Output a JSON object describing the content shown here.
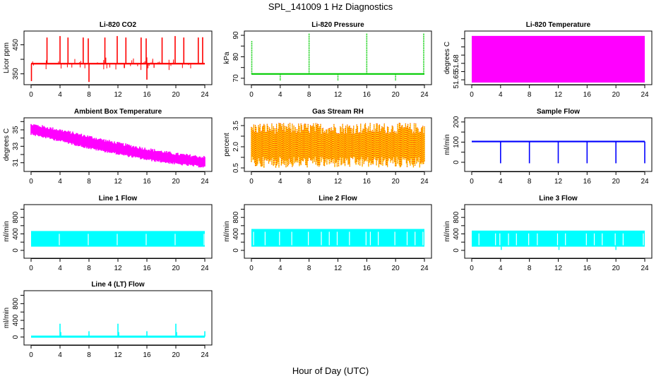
{
  "title": "SPL_141009  1 Hz Diagnostics",
  "shared_xlabel": "Hour of Day (UTC)",
  "chart_data": [
    {
      "type": "line",
      "title": "Li-820 CO2",
      "xlabel": "",
      "ylabel": "Licor ppm",
      "color": "#ff0000",
      "xlim": [
        0,
        24
      ],
      "ylim": [
        320,
        490
      ],
      "xticks": [
        0,
        4,
        8,
        12,
        16,
        20,
        24
      ],
      "yticks": [
        350,
        400,
        450
      ],
      "ytick_labels": [
        "350",
        "",
        "450"
      ],
      "baseline": 385,
      "pattern": "spiky",
      "spikes": [
        {
          "x": 0.05,
          "y": 325
        },
        {
          "x": 2.2,
          "y": 475
        },
        {
          "x": 4.0,
          "y": 480
        },
        {
          "x": 5.1,
          "y": 475
        },
        {
          "x": 7.2,
          "y": 475
        },
        {
          "x": 7.9,
          "y": 472
        },
        {
          "x": 8.0,
          "y": 322
        },
        {
          "x": 10.2,
          "y": 475
        },
        {
          "x": 11.9,
          "y": 480
        },
        {
          "x": 13.1,
          "y": 475
        },
        {
          "x": 15.2,
          "y": 475
        },
        {
          "x": 15.9,
          "y": 472
        },
        {
          "x": 16.0,
          "y": 330
        },
        {
          "x": 18.1,
          "y": 475
        },
        {
          "x": 19.9,
          "y": 480
        },
        {
          "x": 21.1,
          "y": 475
        },
        {
          "x": 23.1,
          "y": 475
        },
        {
          "x": 23.7,
          "y": 476
        }
      ]
    },
    {
      "type": "line",
      "title": "Li-820 Pressure",
      "xlabel": "",
      "ylabel": "kPa",
      "color": "#00cc00",
      "xlim": [
        0,
        24
      ],
      "ylim": [
        68,
        91
      ],
      "xticks": [
        0,
        4,
        8,
        12,
        16,
        20,
        24
      ],
      "yticks": [
        70,
        75,
        80,
        85,
        90
      ],
      "ytick_labels": [
        "70",
        "",
        "80",
        "",
        "90"
      ],
      "baseline": 72,
      "pattern": "spiky",
      "spikes": [
        {
          "x": 0.05,
          "y": 87.5
        },
        {
          "x": 4.0,
          "y": 69
        },
        {
          "x": 8.0,
          "y": 91
        },
        {
          "x": 12.0,
          "y": 69
        },
        {
          "x": 16.0,
          "y": 91
        },
        {
          "x": 20.0,
          "y": 69
        },
        {
          "x": 23.9,
          "y": 91
        }
      ]
    },
    {
      "type": "area",
      "title": "Li-820 Temperature",
      "xlabel": "",
      "ylabel": "degrees C",
      "color": "#ff00ff",
      "xlim": [
        0,
        24
      ],
      "ylim": [
        51.645,
        51.735
      ],
      "xticks": [
        0,
        4,
        8,
        12,
        16,
        20,
        24
      ],
      "yticks": [
        51.65,
        51.665,
        51.68,
        51.695,
        51.71,
        51.725
      ],
      "ytick_labels": [
        "51.65",
        "",
        "51.68",
        "",
        "",
        ""
      ],
      "band_low": 51.645,
      "band_high": 51.73,
      "pattern": "band"
    },
    {
      "type": "area",
      "title": "Ambient Box Temperature",
      "xlabel": "",
      "ylabel": "degrees C",
      "color": "#ff00ff",
      "xlim": [
        0,
        24
      ],
      "ylim": [
        30.2,
        36.2
      ],
      "xticks": [
        0,
        4,
        8,
        12,
        16,
        20,
        24
      ],
      "yticks": [
        31,
        32,
        33,
        34,
        35,
        36
      ],
      "ytick_labels": [
        "31",
        "",
        "33",
        "",
        "35",
        ""
      ],
      "x": [
        0,
        4,
        8,
        12,
        16,
        20,
        24
      ],
      "upper": [
        35.6,
        34.9,
        34.1,
        33.3,
        32.6,
        32.0,
        31.6
      ],
      "lower": [
        34.6,
        33.8,
        32.9,
        32.2,
        31.5,
        31.0,
        30.6
      ],
      "pattern": "trend-band"
    },
    {
      "type": "area",
      "title": "Gas Stream RH",
      "xlabel": "",
      "ylabel": "percent",
      "color": "#ffcc00",
      "color2": "#ff0000",
      "xlim": [
        0,
        24
      ],
      "ylim": [
        0.4,
        3.9
      ],
      "xticks": [
        0,
        4,
        8,
        12,
        16,
        20,
        24
      ],
      "yticks": [
        0.5,
        1.25,
        2.0,
        2.75,
        3.5
      ],
      "ytick_labels": [
        "0.5",
        "",
        "2.0",
        "",
        "3.5"
      ],
      "band_low": 1.3,
      "band_high": 2.9,
      "noise_min": 0.5,
      "noise_max": 3.7,
      "pattern": "noisy-band"
    },
    {
      "type": "line",
      "title": "Sample Flow",
      "xlabel": "",
      "ylabel": "ml/min",
      "color": "#0000ff",
      "xlim": [
        0,
        24
      ],
      "ylim": [
        -35,
        210
      ],
      "xticks": [
        0,
        4,
        8,
        12,
        16,
        20,
        24
      ],
      "yticks": [
        0,
        50,
        100,
        150,
        200
      ],
      "ytick_labels": [
        "0",
        "",
        "100",
        "",
        "200"
      ],
      "baseline": 103,
      "pattern": "spiky",
      "spikes": [
        {
          "x": 4.0,
          "y": -5
        },
        {
          "x": 8.0,
          "y": -5
        },
        {
          "x": 12.0,
          "y": -5
        },
        {
          "x": 16.0,
          "y": -5
        },
        {
          "x": 20.0,
          "y": -5
        },
        {
          "x": 24.0,
          "y": -5
        }
      ]
    },
    {
      "type": "area",
      "title": "Line 1 Flow",
      "xlabel": "",
      "ylabel": "ml/min",
      "color": "#00ffff",
      "xlim": [
        0,
        24
      ],
      "ylim": [
        -140,
        1060
      ],
      "xticks": [
        0,
        4,
        8,
        12,
        16,
        20,
        24
      ],
      "yticks": [
        0,
        200,
        400,
        600,
        800,
        1000
      ],
      "ytick_labels": [
        "0",
        "",
        "400",
        "",
        "800",
        ""
      ],
      "band_low": 90,
      "band_high": 470,
      "gaps": [
        3.9,
        7.9,
        11.9,
        15.9,
        19.9,
        23.9
      ],
      "pattern": "band"
    },
    {
      "type": "area",
      "title": "Line 2 Flow",
      "xlabel": "",
      "ylabel": "ml/min",
      "color": "#00ffff",
      "xlim": [
        0,
        24
      ],
      "ylim": [
        -140,
        1060
      ],
      "xticks": [
        0,
        4,
        8,
        12,
        16,
        20,
        24
      ],
      "yticks": [
        0,
        200,
        400,
        600,
        800,
        1000
      ],
      "ytick_labels": [
        "0",
        "",
        "400",
        "",
        "800",
        ""
      ],
      "band_low": 90,
      "band_high": 520,
      "gaps": [
        0.3,
        1.9,
        3.9,
        5.6,
        7.9,
        9.7,
        10.8,
        11.9,
        13.6,
        15.9,
        16.5,
        17.6,
        19.9,
        21.6,
        22.7,
        23.8
      ],
      "pattern": "band"
    },
    {
      "type": "area",
      "title": "Line 3 Flow",
      "xlabel": "",
      "ylabel": "ml/min",
      "color": "#00ffff",
      "xlim": [
        0,
        24
      ],
      "ylim": [
        -140,
        1060
      ],
      "xticks": [
        0,
        4,
        8,
        12,
        16,
        20,
        24
      ],
      "yticks": [
        0,
        200,
        400,
        600,
        800,
        1000
      ],
      "ytick_labels": [
        "0",
        "",
        "400",
        "",
        "800",
        ""
      ],
      "band_low": 90,
      "band_high": 480,
      "gaps": [
        1.0,
        3.3,
        3.9,
        5.1,
        6.2,
        7.9,
        9.1,
        11.9,
        13.0,
        15.9,
        17.0,
        18.1,
        19.9,
        21.0,
        23.8
      ],
      "dips": [
        {
          "x": 4.1,
          "y": 10
        },
        {
          "x": 12.1,
          "y": 10
        },
        {
          "x": 20.0,
          "y": 10
        }
      ],
      "pattern": "band"
    },
    {
      "type": "line",
      "title": "Line 4 (LT) Flow",
      "xlabel": "",
      "ylabel": "ml/min",
      "color": "#00ffff",
      "xlim": [
        0,
        24
      ],
      "ylim": [
        -140,
        1060
      ],
      "xticks": [
        0,
        4,
        8,
        12,
        16,
        20,
        24
      ],
      "yticks": [
        0,
        200,
        400,
        600,
        800,
        1000
      ],
      "ytick_labels": [
        "0",
        "",
        "400",
        "",
        "800",
        ""
      ],
      "baseline": 10,
      "pattern": "spiky",
      "spikes": [
        {
          "x": 4.0,
          "y": 320
        },
        {
          "x": 4.1,
          "y": 120
        },
        {
          "x": 8.0,
          "y": 140
        },
        {
          "x": 12.0,
          "y": 320
        },
        {
          "x": 12.1,
          "y": 120
        },
        {
          "x": 16.0,
          "y": 140
        },
        {
          "x": 20.0,
          "y": 320
        },
        {
          "x": 20.1,
          "y": 120
        },
        {
          "x": 24.0,
          "y": 140
        }
      ]
    }
  ]
}
